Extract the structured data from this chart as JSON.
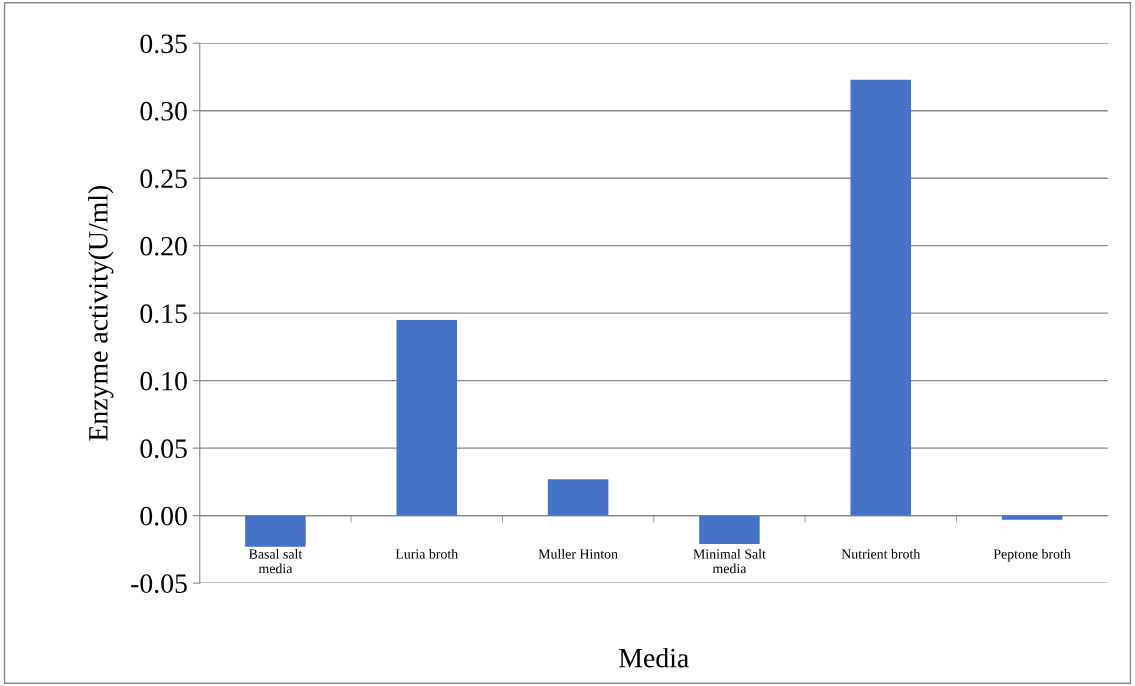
{
  "chart_data": {
    "type": "bar",
    "xlabel": "Media",
    "ylabel": "Enzyme activity(U/ml)",
    "categories": [
      "Basal salt\nmedia",
      "Luria broth",
      "Muller Hinton",
      "Minimal Salt\nmedia",
      "Nutrient broth",
      "Peptone broth"
    ],
    "values": [
      -0.023,
      0.145,
      0.027,
      -0.021,
      0.323,
      -0.003
    ],
    "color": "#4472c4",
    "ylim": [
      -0.05,
      0.35
    ],
    "yticks": [
      {
        "value": -0.05,
        "label": "-0.05"
      },
      {
        "value": 0,
        "label": "0.00"
      },
      {
        "value": 0.05,
        "label": "0.05"
      },
      {
        "value": 0.1,
        "label": "0.10"
      },
      {
        "value": 0.15,
        "label": "0.15"
      },
      {
        "value": 0.2,
        "label": "0.20"
      },
      {
        "value": 0.25,
        "label": "0.25"
      },
      {
        "value": 0.3,
        "label": "0.30"
      },
      {
        "value": 0.35,
        "label": "0.35"
      }
    ],
    "grid": "y",
    "legend": false
  }
}
